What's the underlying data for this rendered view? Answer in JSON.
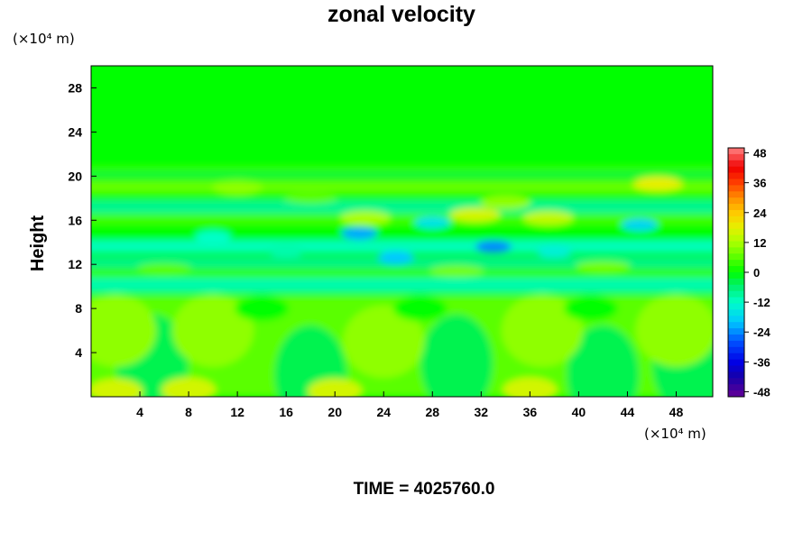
{
  "chart_data": {
    "type": "heatmap",
    "title": "zonal velocity",
    "ylabel": "Height",
    "y_unit": "(×10⁴ m)",
    "x_unit": "(×10⁴ m)",
    "x_ticks": [
      4,
      8,
      12,
      16,
      20,
      24,
      28,
      32,
      36,
      40,
      44,
      48
    ],
    "y_ticks": [
      4,
      8,
      12,
      16,
      20,
      24,
      28
    ],
    "xlim": [
      0,
      51
    ],
    "ylim": [
      0,
      30
    ],
    "colorbar": {
      "ticks": [
        48,
        36,
        24,
        12,
        0,
        -12,
        -24,
        -36,
        -48
      ],
      "range": [
        -50,
        50
      ]
    },
    "footer": "TIME = 4025760.0",
    "colors": {
      "background_field": "#00ff00",
      "near_zero": "#33ee22"
    }
  }
}
